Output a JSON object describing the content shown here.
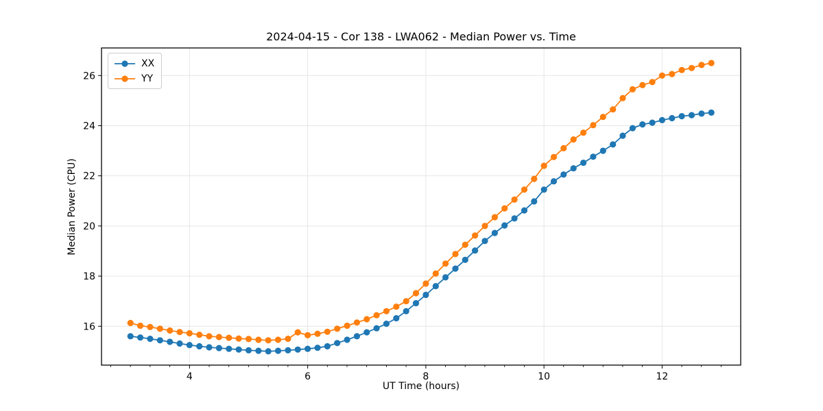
{
  "figure": {
    "background": "#ffffff"
  },
  "chart_data": {
    "type": "line",
    "title": "2024-04-15 - Cor 138 - LWA062 - Median Power vs. Time",
    "xlabel": "UT Time (hours)",
    "ylabel": "Median Power (CPU)",
    "xlim": [
      2.51,
      13.33
    ],
    "ylim": [
      14.45,
      27.1
    ],
    "xticks": [
      4,
      6,
      8,
      10,
      12
    ],
    "yticks": [
      16,
      18,
      20,
      22,
      24,
      26
    ],
    "minor_xtick_step": 0.3333,
    "grid": true,
    "legend_position": "upper left",
    "colors": {
      "grid": "#e6e6e6",
      "spine": "#000000",
      "tick": "#000000",
      "series_xx": "#1f77b4",
      "series_yy": "#ff7f0e"
    },
    "x": [
      3.0,
      3.167,
      3.333,
      3.5,
      3.667,
      3.833,
      4.0,
      4.167,
      4.333,
      4.5,
      4.667,
      4.833,
      5.0,
      5.167,
      5.333,
      5.5,
      5.667,
      5.833,
      6.0,
      6.167,
      6.333,
      6.5,
      6.667,
      6.833,
      7.0,
      7.167,
      7.333,
      7.5,
      7.667,
      7.833,
      8.0,
      8.167,
      8.333,
      8.5,
      8.667,
      8.833,
      9.0,
      9.167,
      9.333,
      9.5,
      9.667,
      9.833,
      10.0,
      10.167,
      10.333,
      10.5,
      10.667,
      10.833,
      11.0,
      11.167,
      11.333,
      11.5,
      11.667,
      11.833,
      12.0,
      12.167,
      12.333,
      12.5,
      12.667,
      12.833
    ],
    "series": [
      {
        "name": "XX",
        "color": "#1f77b4",
        "marker": "circle",
        "values": [
          15.6,
          15.55,
          15.5,
          15.44,
          15.38,
          15.31,
          15.25,
          15.2,
          15.16,
          15.13,
          15.1,
          15.07,
          15.04,
          15.02,
          15.0,
          15.02,
          15.04,
          15.07,
          15.1,
          15.14,
          15.2,
          15.33,
          15.46,
          15.6,
          15.76,
          15.92,
          16.1,
          16.32,
          16.6,
          16.92,
          17.25,
          17.6,
          17.95,
          18.3,
          18.65,
          19.02,
          19.4,
          19.72,
          20.02,
          20.3,
          20.62,
          20.98,
          21.45,
          21.78,
          22.05,
          22.3,
          22.52,
          22.76,
          23.0,
          23.25,
          23.6,
          23.9,
          24.05,
          24.12,
          24.22,
          24.3,
          24.38,
          24.42,
          24.48,
          24.52
        ]
      },
      {
        "name": "YY",
        "color": "#ff7f0e",
        "marker": "circle",
        "values": [
          16.13,
          16.02,
          15.97,
          15.9,
          15.83,
          15.77,
          15.72,
          15.66,
          15.6,
          15.57,
          15.54,
          15.51,
          15.49,
          15.46,
          15.44,
          15.46,
          15.5,
          15.76,
          15.64,
          15.7,
          15.78,
          15.9,
          16.02,
          16.15,
          16.28,
          16.44,
          16.6,
          16.78,
          17.0,
          17.32,
          17.7,
          18.1,
          18.5,
          18.88,
          19.25,
          19.62,
          20.0,
          20.35,
          20.7,
          21.05,
          21.45,
          21.88,
          22.4,
          22.75,
          23.1,
          23.45,
          23.72,
          24.02,
          24.35,
          24.65,
          25.1,
          25.45,
          25.62,
          25.74,
          26.0,
          26.06,
          26.22,
          26.3,
          26.42,
          26.5
        ]
      }
    ]
  }
}
